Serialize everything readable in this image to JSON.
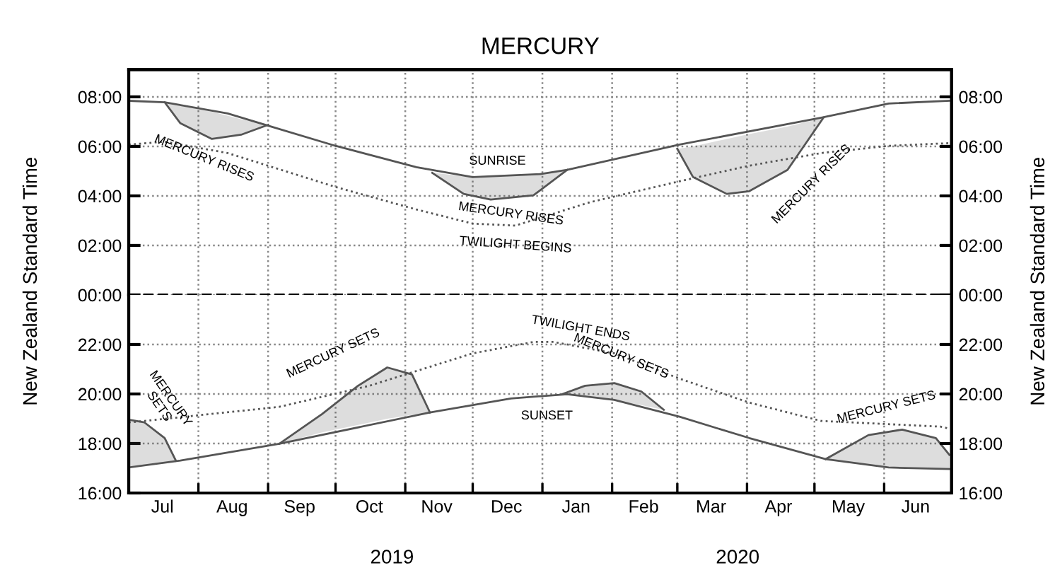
{
  "chart_data": [
    {
      "type": "line",
      "title": "MERCURY",
      "ylabel": "New Zealand Standard Time",
      "y2label": "New Zealand Standard Time",
      "tick_labels": "y",
      "xlim": [
        "2019-07-01",
        "2020-07-01"
      ],
      "xticks": [
        {
          "value": "2019-07-01",
          "label": null
        },
        {
          "value": "2019-08-01",
          "label": null
        },
        {
          "value": "2019-09-01",
          "label": null
        },
        {
          "value": "2019-10-01",
          "label": null
        },
        {
          "value": "2019-11-01",
          "label": null
        },
        {
          "value": "2019-12-01",
          "label": null
        },
        {
          "value": "2020-01-01",
          "label": null
        },
        {
          "value": "2020-02-01",
          "label": null
        },
        {
          "value": "2020-03-01",
          "label": null
        },
        {
          "value": "2020-04-01",
          "label": null
        },
        {
          "value": "2020-05-01",
          "label": null
        },
        {
          "value": "2020-06-01",
          "label": null
        },
        {
          "value": "2020-07-01",
          "label": null
        }
      ],
      "ylim": [
        0,
        9.1
      ],
      "yticks": [
        {
          "value": 0,
          "label": "00:00"
        },
        {
          "value": 2,
          "label": "02:00"
        },
        {
          "value": 4,
          "label": "04:00"
        },
        {
          "value": 6,
          "label": "06:00"
        },
        {
          "value": 8,
          "label": "08:00"
        }
      ],
      "y2lim": [
        0,
        9.1
      ],
      "y2ticks": [
        {
          "value": 0,
          "label": "00:00"
        },
        {
          "value": 2,
          "label": "02:00"
        },
        {
          "value": 4,
          "label": "04:00"
        },
        {
          "value": 6,
          "label": "06:00"
        },
        {
          "value": 8,
          "label": "08:00"
        }
      ],
      "grid": true,
      "ref_lines": [
        {
          "axis": "y",
          "value": 0,
          "color": "#000000",
          "line_style": "dashed"
        }
      ],
      "series": [
        {
          "color": "#555555",
          "line_style": "solid",
          "x": [
            "2019-07-01",
            "2019-07-17",
            "2019-08-14",
            "2019-09-02",
            "2019-10-01",
            "2019-11-06",
            "2019-12-01",
            "2019-12-31",
            "2020-01-12",
            "2020-03-02",
            "2020-05-04",
            "2020-06-03",
            "2020-06-30"
          ],
          "values": [
            7.84,
            7.78,
            7.33,
            6.81,
            6.02,
            5.16,
            4.76,
            4.88,
            5.05,
            6.07,
            7.16,
            7.73,
            7.84
          ]
        },
        {
          "color": "#555555",
          "line_style": "dotted",
          "x": [
            "2019-07-01",
            "2019-07-17",
            "2019-08-14",
            "2019-09-03",
            "2019-10-01",
            "2019-11-06",
            "2019-12-01",
            "2019-12-20",
            "2020-01-22",
            "2020-03-02",
            "2020-04-02",
            "2020-05-04",
            "2020-06-03",
            "2020-06-30"
          ],
          "values": [
            6.07,
            6.19,
            5.73,
            5.16,
            4.36,
            3.45,
            2.88,
            2.8,
            3.74,
            4.59,
            5.22,
            5.73,
            6.02,
            6.13
          ]
        },
        {
          "color": "#555555",
          "line_style": "solid",
          "x": [
            "2019-07-17",
            "2019-07-24",
            "2019-08-07",
            "2019-08-20",
            "2019-09-01"
          ],
          "values": [
            7.78,
            6.93,
            6.3,
            6.47,
            6.87
          ],
          "lower": [
            7.78,
            6.93,
            6.3,
            6.47,
            6.87
          ],
          "upper": [
            7.78,
            7.65,
            7.4,
            7.1,
            6.87
          ]
        },
        {
          "color": "#555555",
          "line_style": "solid",
          "x": [
            "2019-11-13",
            "2019-11-27",
            "2019-12-09",
            "2019-12-28",
            "2020-01-12"
          ],
          "values": [
            4.93,
            4.08,
            3.85,
            4.02,
            5.05
          ],
          "lower": [
            4.93,
            4.08,
            3.85,
            4.02,
            5.05
          ],
          "upper": [
            4.93,
            4.8,
            4.76,
            4.85,
            5.05
          ]
        },
        {
          "color": "#555555",
          "line_style": "solid",
          "x": [
            "2020-03-01",
            "2020-03-08",
            "2020-03-23",
            "2020-04-02",
            "2020-04-19",
            "2020-05-05"
          ],
          "values": [
            5.9,
            4.76,
            4.08,
            4.19,
            5.05,
            7.16
          ],
          "lower": [
            5.9,
            4.76,
            4.08,
            4.19,
            5.05,
            7.16
          ],
          "upper": [
            5.9,
            6.0,
            6.3,
            6.5,
            6.8,
            7.16
          ]
        }
      ],
      "annotations": [
        {
          "text": "MERCURY RISES",
          "x": "2019-08-07",
          "y": 6.3
        },
        {
          "text": "SUNRISE",
          "x": "2019-12-12",
          "y": 4.76
        },
        {
          "text": "MERCURY RISES",
          "x": "2019-12-18",
          "y": 3.9
        },
        {
          "text": "TWILIGHT BEGINS",
          "x": "2019-12-20",
          "y": 2.8
        },
        {
          "text": "MERCURY RISES",
          "x": "2020-04-21",
          "y": 5.1
        }
      ]
    },
    {
      "type": "line",
      "y2label": null,
      "xlim": [
        "2019-07-01",
        "2020-07-01"
      ],
      "xticks": [
        {
          "value": "2019-07-01",
          "label": null
        },
        {
          "value": "2019-08-01",
          "label": null
        },
        {
          "value": "2019-09-01",
          "label": null
        },
        {
          "value": "2019-10-01",
          "label": null
        },
        {
          "value": "2019-11-01",
          "label": null
        },
        {
          "value": "2019-12-01",
          "label": null
        },
        {
          "value": "2020-01-01",
          "label": null
        },
        {
          "value": "2020-02-01",
          "label": null
        },
        {
          "value": "2020-03-01",
          "label": null
        },
        {
          "value": "2020-04-01",
          "label": null
        },
        {
          "value": "2020-05-01",
          "label": null
        },
        {
          "value": "2020-06-01",
          "label": null
        },
        {
          "value": "2020-07-01",
          "label": null
        },
        {
          "value": "2019-07-16",
          "label": "Jul"
        },
        {
          "value": "2019-08-16",
          "label": "Aug"
        },
        {
          "value": "2019-09-15",
          "label": "Sep"
        },
        {
          "value": "2019-10-16",
          "label": "Oct"
        },
        {
          "value": "2019-11-15",
          "label": "Nov"
        },
        {
          "value": "2019-12-16",
          "label": "Dec"
        },
        {
          "value": "2020-01-16",
          "label": "Jan"
        },
        {
          "value": "2020-02-15",
          "label": "Feb"
        },
        {
          "value": "2020-03-16",
          "label": "Mar"
        },
        {
          "value": "2020-04-15",
          "label": "Apr"
        },
        {
          "value": "2020-05-16",
          "label": "May"
        },
        {
          "value": "2020-06-15",
          "label": "Jun"
        }
      ],
      "ylim": [
        16,
        24
      ],
      "yticks": [
        {
          "value": 16,
          "label": "16:00"
        },
        {
          "value": 18,
          "label": "18:00"
        },
        {
          "value": 20,
          "label": "20:00"
        },
        {
          "value": 22,
          "label": "22:00"
        }
      ],
      "y2lim": [
        16,
        24
      ],
      "y2ticks": [
        {
          "value": 16,
          "label": "16:00"
        },
        {
          "value": 18,
          "label": "18:00"
        },
        {
          "value": 20,
          "label": "20:00"
        },
        {
          "value": 22,
          "label": "22:00"
        }
      ],
      "grid": true,
      "series": [
        {
          "color": "#555555",
          "line_style": "solid",
          "x": [
            "2019-07-01",
            "2019-07-24",
            "2019-09-06",
            "2019-11-12",
            "2019-12-18",
            "2020-01-12",
            "2020-02-02",
            "2020-03-02",
            "2020-04-02",
            "2020-05-06",
            "2020-06-03",
            "2020-06-30"
          ],
          "values": [
            17.03,
            17.31,
            17.99,
            19.25,
            19.82,
            19.99,
            19.76,
            19.08,
            18.22,
            17.37,
            17.03,
            16.97
          ]
        },
        {
          "color": "#555555",
          "line_style": "dotted",
          "x": [
            "2019-07-01",
            "2019-07-08",
            "2019-09-06",
            "2019-10-16",
            "2019-12-01",
            "2019-12-28",
            "2020-01-06",
            "2020-02-02",
            "2020-03-02",
            "2020-04-02",
            "2020-05-04",
            "2020-06-26",
            "2020-06-30"
          ],
          "values": [
            18.85,
            18.91,
            19.48,
            20.33,
            21.64,
            22.1,
            22.1,
            21.64,
            20.62,
            19.65,
            18.91,
            18.68,
            18.6
          ]
        },
        {
          "color": "#555555",
          "line_style": "solid",
          "x": [
            "2019-07-01",
            "2019-07-08",
            "2019-07-17",
            "2019-07-22"
          ],
          "values": [
            18.96,
            18.85,
            18.22,
            17.3
          ],
          "lower": [
            17.03,
            17.1,
            17.22,
            17.3
          ],
          "upper": [
            18.96,
            18.85,
            18.22,
            17.3
          ]
        },
        {
          "color": "#555555",
          "line_style": "solid",
          "x": [
            "2019-09-06",
            "2019-09-25",
            "2019-10-11",
            "2019-10-24",
            "2019-11-04",
            "2019-11-12"
          ],
          "values": [
            17.99,
            19.19,
            20.33,
            21.07,
            20.79,
            19.25
          ],
          "lower": [
            17.99,
            18.45,
            18.75,
            19.0,
            19.15,
            19.25
          ],
          "upper": [
            17.99,
            19.19,
            20.33,
            21.07,
            20.79,
            19.25
          ]
        },
        {
          "color": "#555555",
          "line_style": "solid",
          "x": [
            "2020-01-10",
            "2020-01-20",
            "2020-02-02",
            "2020-02-14",
            "2020-02-24"
          ],
          "values": [
            20.0,
            20.33,
            20.44,
            20.1,
            19.36
          ],
          "lower": [
            20.0,
            19.95,
            19.76,
            19.55,
            19.36
          ],
          "upper": [
            20.0,
            20.33,
            20.44,
            20.1,
            19.36
          ]
        },
        {
          "color": "#555555",
          "line_style": "solid",
          "x": [
            "2020-05-06",
            "2020-05-25",
            "2020-06-09",
            "2020-06-24",
            "2020-06-30"
          ],
          "values": [
            17.37,
            18.34,
            18.56,
            18.22,
            17.54
          ],
          "lower": [
            17.37,
            17.15,
            17.02,
            16.98,
            16.97
          ],
          "upper": [
            17.37,
            18.34,
            18.56,
            18.22,
            17.54
          ]
        }
      ],
      "annotations": [
        {
          "text": "MERCURY\nSETS",
          "x": "2019-07-17",
          "y": 18.22
        },
        {
          "text": "MERCURY SETS",
          "x": "2019-10-07",
          "y": 20.2
        },
        {
          "text": "TWILIGHT ENDS",
          "x": "2020-01-18",
          "y": 22.0
        },
        {
          "text": "SUNSET",
          "x": "2020-01-03",
          "y": 19.9
        },
        {
          "text": "MERCURY SETS",
          "x": "2020-02-05",
          "y": 20.4
        },
        {
          "text": "MERCURY SETS",
          "x": "2020-06-02",
          "y": 18.5
        },
        "2019",
        "2020"
      ]
    }
  ]
}
